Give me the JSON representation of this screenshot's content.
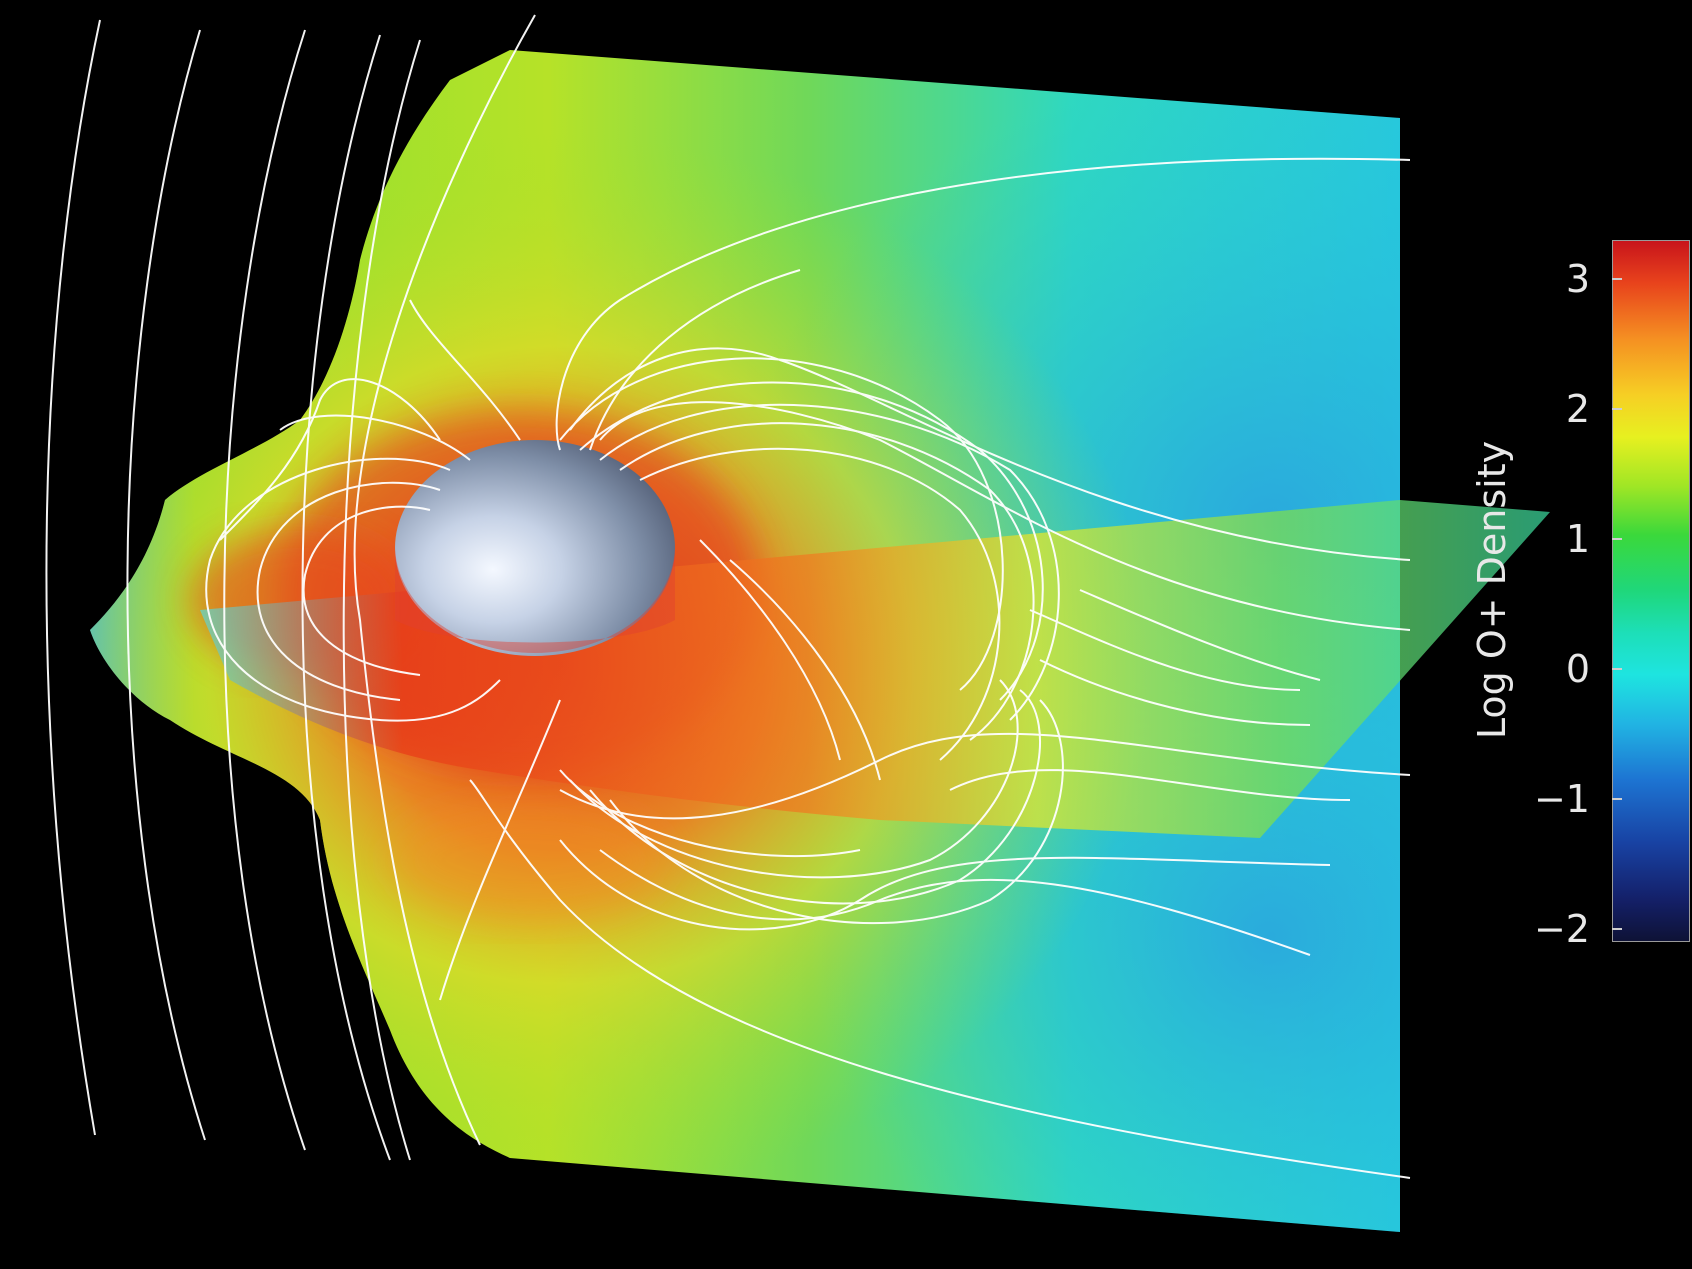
{
  "colorbar": {
    "title": "Log O+ Density",
    "ticks": [
      {
        "label": "3",
        "value": 3
      },
      {
        "label": "2",
        "value": 2
      },
      {
        "label": "1",
        "value": 1
      },
      {
        "label": "0",
        "value": 0
      },
      {
        "label": "−1",
        "value": -1
      },
      {
        "label": "−2",
        "value": -2
      }
    ],
    "range": [
      -2.1,
      3.3
    ],
    "colormap": [
      "#0e1236",
      "#1842a3",
      "#1d74d2",
      "#21b4e3",
      "#1ee4e0",
      "#1ddfb8",
      "#1fd77b",
      "#3bd83b",
      "#a0e625",
      "#e7f020",
      "#f6cf24",
      "#f59022",
      "#e8431c",
      "#c8141b"
    ]
  },
  "colors": {
    "background": "#000000",
    "field_lines": "#ffffff",
    "planet": "#aab8d0"
  }
}
